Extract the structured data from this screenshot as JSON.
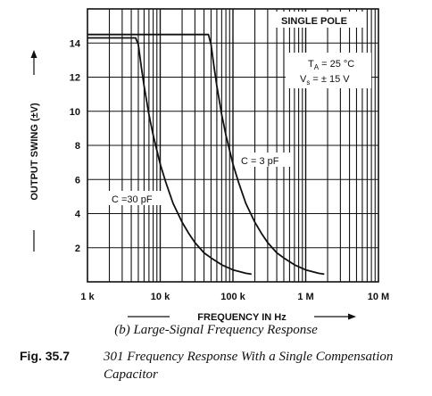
{
  "chart_data": {
    "type": "line",
    "xscale": "log",
    "xlim": [
      1000,
      10000000
    ],
    "ylim": [
      0,
      16
    ],
    "x_ticks": [
      {
        "value": 1000,
        "label": "1 k"
      },
      {
        "value": 10000,
        "label": "10 k"
      },
      {
        "value": 100000,
        "label": "100 k"
      },
      {
        "value": 1000000,
        "label": "1 M"
      },
      {
        "value": 10000000,
        "label": "10 M"
      }
    ],
    "y_ticks": [
      {
        "value": 2,
        "label": "2"
      },
      {
        "value": 4,
        "label": "4"
      },
      {
        "value": 6,
        "label": "6"
      },
      {
        "value": 8,
        "label": "8"
      },
      {
        "value": 10,
        "label": "10"
      },
      {
        "value": 12,
        "label": "12"
      },
      {
        "value": 14,
        "label": "14"
      }
    ],
    "xlabel": "FREQUENCY IN Hz",
    "ylabel": "OUTPUT SWING (±V)",
    "grid": true,
    "series": [
      {
        "name": "C =30 pF",
        "x": [
          1000,
          3000,
          4600,
          5000,
          5500,
          6000,
          7000,
          8000,
          10000,
          12000,
          15000,
          20000,
          25000,
          30000,
          40000,
          50000,
          70000,
          100000,
          150000,
          180000
        ],
        "y": [
          14.3,
          14.3,
          14.3,
          13.9,
          12.6,
          11.5,
          9.8,
          8.6,
          6.9,
          5.8,
          4.6,
          3.5,
          2.8,
          2.3,
          1.7,
          1.4,
          1.0,
          0.7,
          0.5,
          0.45
        ]
      },
      {
        "name": "C = 3 pF",
        "x": [
          1000,
          10000,
          46000,
          50000,
          55000,
          60000,
          70000,
          80000,
          100000,
          120000,
          150000,
          200000,
          250000,
          300000,
          400000,
          500000,
          700000,
          1000000,
          1500000,
          1800000
        ],
        "y": [
          14.5,
          14.5,
          14.5,
          13.9,
          12.6,
          11.5,
          9.8,
          8.6,
          6.9,
          5.8,
          4.6,
          3.5,
          2.8,
          2.3,
          1.7,
          1.4,
          1.0,
          0.7,
          0.5,
          0.45
        ]
      }
    ],
    "annotations": [
      {
        "text": "SINGLE POLE"
      },
      {
        "text": "T",
        "sub": "A",
        "rest": " = 25 °C"
      },
      {
        "text": "V",
        "sub": "s",
        "rest": " = ± 15 V"
      },
      {
        "text": "C = 3 pF"
      },
      {
        "text": "C =30 pF"
      }
    ]
  },
  "captions": {
    "subcaption": "(b) Large-Signal Frequency Response",
    "fig_label": "Fig. 35.7",
    "fig_text": "301 Frequency Response With a Single Compensation Capacitor"
  }
}
